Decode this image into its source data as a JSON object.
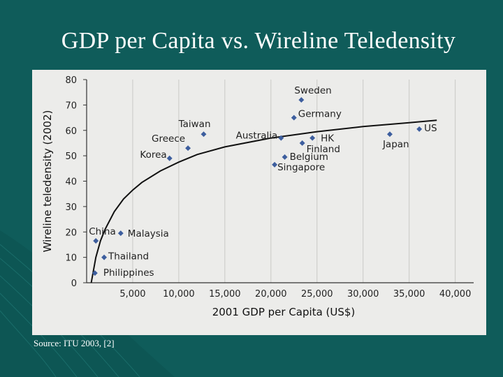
{
  "slide": {
    "title": "GDP per Capita vs. Wireline Teledensity",
    "source": "Source: ITU 2003, [2]",
    "background_color": "#0f5c5a"
  },
  "chart_data": {
    "type": "scatter",
    "title": "GDP per Capita vs. Wireline Teledensity",
    "xlabel": "2001 GDP per Capita (US$)",
    "ylabel": "Wireline teledensity (2002)",
    "xlim": [
      0,
      42000
    ],
    "ylim": [
      0,
      80
    ],
    "x_ticks": [
      5000,
      10000,
      15000,
      20000,
      25000,
      30000,
      35000,
      40000
    ],
    "x_tick_labels": [
      "5,000",
      "10,000",
      "15,000",
      "20,000",
      "25,000",
      "30,000",
      "35,000",
      "40,000"
    ],
    "y_ticks": [
      0,
      10,
      20,
      30,
      40,
      50,
      60,
      70,
      80
    ],
    "y_tick_labels": [
      "0",
      "10",
      "20",
      "30",
      "40",
      "50",
      "60",
      "70",
      "80"
    ],
    "grid": "vertical",
    "marker_color": "#3d5e9e",
    "points": [
      {
        "label": "Philippines",
        "x": 900,
        "y": 3.8
      },
      {
        "label": "Thailand",
        "x": 1900,
        "y": 10
      },
      {
        "label": "China",
        "x": 1000,
        "y": 16.5
      },
      {
        "label": "Malaysia",
        "x": 3700,
        "y": 19.5
      },
      {
        "label": "Korea",
        "x": 9000,
        "y": 49
      },
      {
        "label": "Greece",
        "x": 11000,
        "y": 53
      },
      {
        "label": "Taiwan",
        "x": 12700,
        "y": 58.5
      },
      {
        "label": "Australia",
        "x": 21100,
        "y": 57
      },
      {
        "label": "Sweden",
        "x": 23300,
        "y": 72
      },
      {
        "label": "Germany",
        "x": 22500,
        "y": 65
      },
      {
        "label": "HK",
        "x": 24500,
        "y": 57
      },
      {
        "label": "Finland",
        "x": 23400,
        "y": 55
      },
      {
        "label": "Belgium",
        "x": 21500,
        "y": 49.5
      },
      {
        "label": "Singapore",
        "x": 20400,
        "y": 46.5
      },
      {
        "label": "Japan",
        "x": 32900,
        "y": 58.5
      },
      {
        "label": "US",
        "x": 36100,
        "y": 60.5
      }
    ],
    "trend_line": {
      "type": "logarithmic",
      "x": [
        500,
        1000,
        1500,
        2000,
        3000,
        4000,
        5000,
        6000,
        8000,
        10000,
        12000,
        15000,
        20000,
        25000,
        30000,
        35000,
        38000
      ],
      "y": [
        0,
        10,
        16.5,
        21,
        28,
        33,
        36.5,
        39.5,
        44,
        47.5,
        50.5,
        53.5,
        57,
        59.5,
        61.5,
        63,
        64
      ]
    }
  }
}
